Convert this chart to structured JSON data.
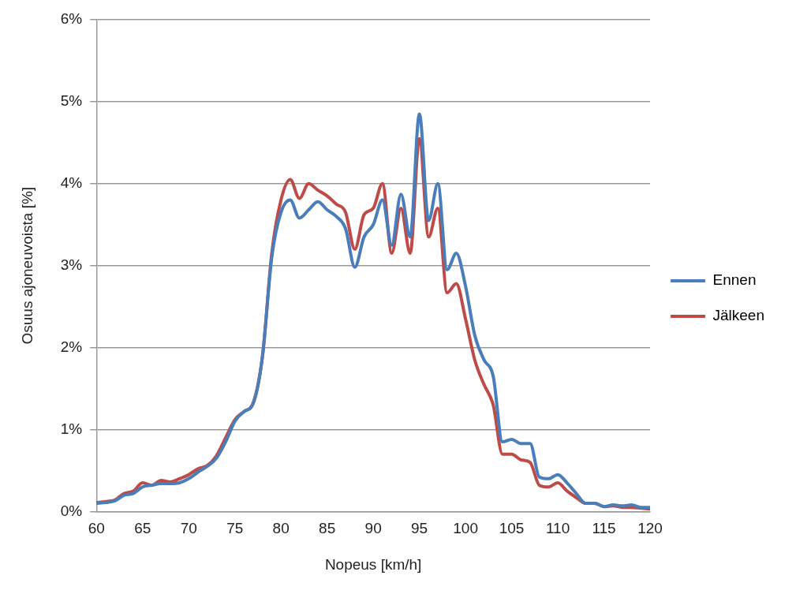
{
  "chart_data": {
    "type": "line",
    "xlabel": "Nopeus [km/h]",
    "ylabel": "Osuus ajoneuvoista [%]",
    "x": [
      60,
      61,
      62,
      63,
      64,
      65,
      66,
      67,
      68,
      69,
      70,
      71,
      72,
      73,
      74,
      75,
      76,
      77,
      78,
      79,
      80,
      81,
      82,
      83,
      84,
      85,
      86,
      87,
      88,
      89,
      90,
      91,
      92,
      93,
      94,
      95,
      96,
      97,
      98,
      99,
      100,
      101,
      102,
      103,
      104,
      105,
      106,
      107,
      108,
      109,
      110,
      111,
      112,
      113,
      114,
      115,
      116,
      117,
      118,
      119,
      120
    ],
    "series": [
      {
        "name": "Ennen",
        "color": "#4a7ebb",
        "values": [
          0.1,
          0.11,
          0.13,
          0.2,
          0.22,
          0.3,
          0.32,
          0.34,
          0.34,
          0.35,
          0.4,
          0.48,
          0.55,
          0.65,
          0.85,
          1.1,
          1.22,
          1.32,
          1.9,
          3.1,
          3.65,
          3.8,
          3.58,
          3.68,
          3.78,
          3.68,
          3.6,
          3.45,
          2.98,
          3.35,
          3.5,
          3.8,
          3.25,
          3.87,
          3.35,
          4.85,
          3.55,
          4.0,
          2.95,
          3.15,
          2.75,
          2.15,
          1.85,
          1.65,
          0.85,
          0.88,
          0.83,
          0.83,
          0.42,
          0.4,
          0.45,
          0.35,
          0.22,
          0.1,
          0.1,
          0.06,
          0.08,
          0.07,
          0.08,
          0.05,
          0.05
        ]
      },
      {
        "name": "Jälkeen",
        "color": "#be4b48",
        "values": [
          0.11,
          0.12,
          0.14,
          0.22,
          0.25,
          0.35,
          0.32,
          0.38,
          0.36,
          0.4,
          0.45,
          0.52,
          0.56,
          0.68,
          0.9,
          1.12,
          1.22,
          1.33,
          1.9,
          3.15,
          3.8,
          4.05,
          3.82,
          4.0,
          3.92,
          3.85,
          3.75,
          3.65,
          3.2,
          3.62,
          3.7,
          4.0,
          3.15,
          3.7,
          3.15,
          4.55,
          3.35,
          3.7,
          2.67,
          2.78,
          2.35,
          1.85,
          1.55,
          1.3,
          0.7,
          0.7,
          0.63,
          0.6,
          0.32,
          0.3,
          0.35,
          0.25,
          0.17,
          0.1,
          0.1,
          0.06,
          0.07,
          0.05,
          0.05,
          0.04,
          0.03
        ]
      }
    ],
    "xlim": [
      60,
      120
    ],
    "xticks": [
      60,
      65,
      70,
      75,
      80,
      85,
      90,
      95,
      100,
      105,
      110,
      115,
      120
    ],
    "ylim": [
      0,
      6
    ],
    "yticks": [
      {
        "value": 0,
        "label": "0%"
      },
      {
        "value": 1,
        "label": "1%"
      },
      {
        "value": 2,
        "label": "2%"
      },
      {
        "value": 3,
        "label": "3%"
      },
      {
        "value": 4,
        "label": "4%"
      },
      {
        "value": 5,
        "label": "5%"
      },
      {
        "value": 6,
        "label": "6%"
      }
    ],
    "grid": "y",
    "legend": "right",
    "marker": "none",
    "line_style": "solid"
  }
}
